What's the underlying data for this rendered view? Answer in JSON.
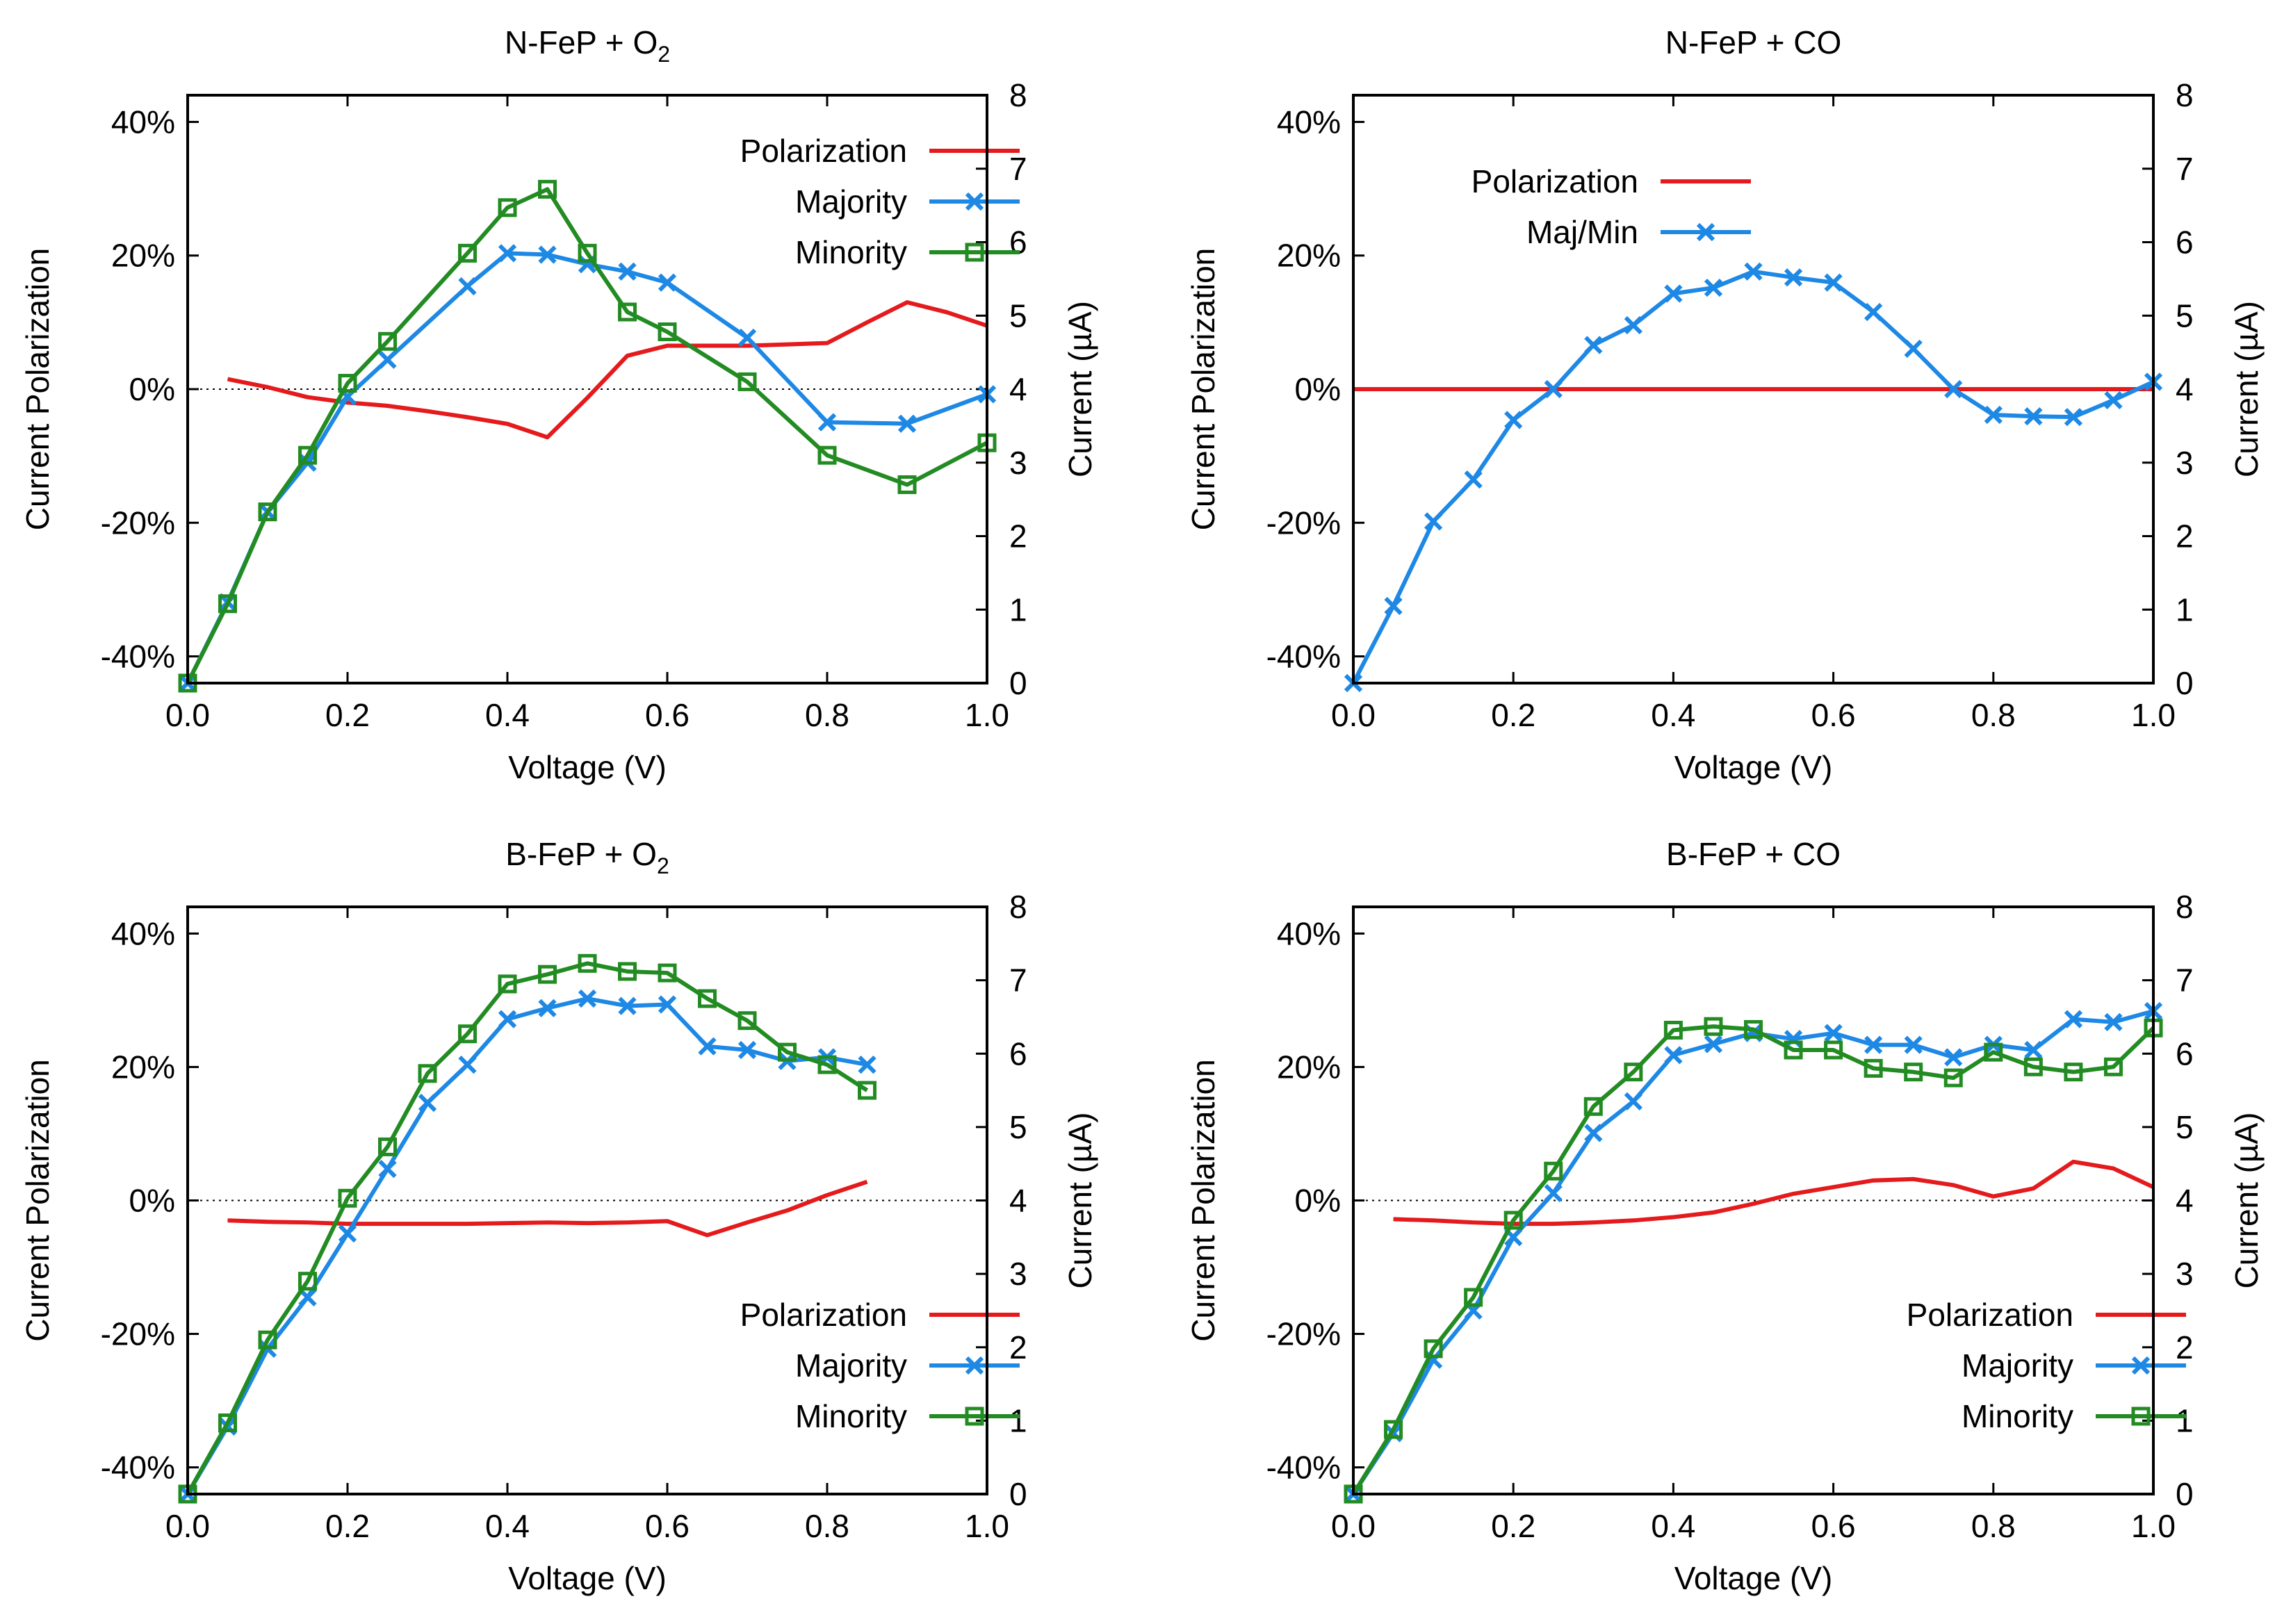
{
  "figure": {
    "description_free": true
  },
  "colors": {
    "polarization": "#e41a1c",
    "majority": "#1e88e5",
    "minority": "#228b22"
  },
  "chart_data": [
    {
      "type": "line",
      "title": "N-FeP + O",
      "title_subscript": "2",
      "xlabel": "Voltage (V)",
      "ylabel_left": "Current Polarization",
      "ylabel_right": "Current (µA)",
      "xlim": [
        0,
        1.0
      ],
      "ylim_left": [
        -44,
        44
      ],
      "ylim_right": [
        0,
        8
      ],
      "x_ticks": [
        "0.0",
        "0.2",
        "0.4",
        "0.6",
        "0.8",
        "1.0"
      ],
      "y_left_ticks": [
        "-40%",
        "-20%",
        "0%",
        "20%",
        "40%"
      ],
      "y_right_ticks": [
        "0",
        "1",
        "2",
        "3",
        "4",
        "5",
        "6",
        "7",
        "8"
      ],
      "legend_position": "top-right",
      "series": [
        {
          "name": "Polarization",
          "axis": "left",
          "color": "#e41a1c",
          "marker": "none",
          "x": [
            0.05,
            0.1,
            0.15,
            0.2,
            0.25,
            0.3,
            0.35,
            0.4,
            0.45,
            0.5,
            0.55,
            0.6,
            0.65,
            0.7,
            0.75,
            0.8,
            0.85,
            0.9,
            0.95,
            1.0
          ],
          "values": [
            1.5,
            0.3,
            -1.2,
            -2.0,
            -2.5,
            -3.3,
            -4.2,
            -5.2,
            -7.2,
            -1.3,
            5.0,
            6.5,
            6.5,
            6.5,
            6.7,
            6.9,
            10.0,
            13.0,
            11.5,
            9.5
          ]
        },
        {
          "name": "Majority",
          "axis": "right",
          "color": "#1e88e5",
          "marker": "x",
          "x": [
            0.0,
            0.05,
            0.1,
            0.15,
            0.2,
            0.25,
            0.35,
            0.4,
            0.45,
            0.5,
            0.55,
            0.6,
            0.7,
            0.8,
            0.9,
            1.0
          ],
          "values": [
            0.0,
            1.1,
            2.33,
            3.0,
            3.9,
            4.4,
            5.4,
            5.85,
            5.83,
            5.7,
            5.6,
            5.45,
            4.7,
            3.55,
            3.53,
            3.93
          ]
        },
        {
          "name": "Minority",
          "axis": "right",
          "color": "#228b22",
          "marker": "square",
          "x": [
            0.0,
            0.05,
            0.1,
            0.15,
            0.2,
            0.25,
            0.35,
            0.4,
            0.45,
            0.5,
            0.55,
            0.6,
            0.7,
            0.8,
            0.9,
            1.0
          ],
          "values": [
            0.0,
            1.08,
            2.33,
            3.1,
            4.08,
            4.65,
            5.85,
            6.47,
            6.72,
            5.85,
            5.05,
            4.78,
            4.1,
            3.1,
            2.7,
            3.27
          ]
        }
      ]
    },
    {
      "type": "line",
      "title": "N-FeP + CO",
      "title_subscript": "",
      "xlabel": "Voltage (V)",
      "ylabel_left": "Current Polarization",
      "ylabel_right": "Current (µA)",
      "xlim": [
        0,
        1.0
      ],
      "ylim_left": [
        -44,
        44
      ],
      "ylim_right": [
        0,
        8
      ],
      "x_ticks": [
        "0.0",
        "0.2",
        "0.4",
        "0.6",
        "0.8",
        "1.0"
      ],
      "y_left_ticks": [
        "-40%",
        "-20%",
        "0%",
        "20%",
        "40%"
      ],
      "y_right_ticks": [
        "0",
        "1",
        "2",
        "3",
        "4",
        "5",
        "6",
        "7",
        "8"
      ],
      "legend_position": "top-left",
      "series": [
        {
          "name": "Polarization",
          "axis": "left",
          "color": "#e41a1c",
          "marker": "none",
          "x": [
            0.0,
            1.0
          ],
          "values": [
            0.0,
            0.0
          ]
        },
        {
          "name": "Maj/Min",
          "axis": "right",
          "color": "#1e88e5",
          "marker": "x",
          "x": [
            0.0,
            0.05,
            0.1,
            0.15,
            0.2,
            0.25,
            0.3,
            0.35,
            0.4,
            0.45,
            0.5,
            0.55,
            0.6,
            0.65,
            0.7,
            0.75,
            0.8,
            0.85,
            0.9,
            0.95,
            1.0
          ],
          "values": [
            0.0,
            1.05,
            2.2,
            2.77,
            3.58,
            4.0,
            4.6,
            4.87,
            5.3,
            5.38,
            5.6,
            5.52,
            5.45,
            5.05,
            4.55,
            4.0,
            3.65,
            3.63,
            3.62,
            3.85,
            4.1
          ]
        }
      ]
    },
    {
      "type": "line",
      "title": "B-FeP + O",
      "title_subscript": "2",
      "xlabel": "Voltage (V)",
      "ylabel_left": "Current Polarization",
      "ylabel_right": "Current (µA)",
      "xlim": [
        0,
        1.0
      ],
      "ylim_left": [
        -44,
        44
      ],
      "ylim_right": [
        0,
        8
      ],
      "x_ticks": [
        "0.0",
        "0.2",
        "0.4",
        "0.6",
        "0.8",
        "1.0"
      ],
      "y_left_ticks": [
        "-40%",
        "-20%",
        "0%",
        "20%",
        "40%"
      ],
      "y_right_ticks": [
        "0",
        "1",
        "2",
        "3",
        "4",
        "5",
        "6",
        "7",
        "8"
      ],
      "legend_position": "bottom-right",
      "series": [
        {
          "name": "Polarization",
          "axis": "left",
          "color": "#e41a1c",
          "marker": "none",
          "x": [
            0.05,
            0.1,
            0.15,
            0.2,
            0.25,
            0.3,
            0.35,
            0.4,
            0.45,
            0.5,
            0.55,
            0.6,
            0.65,
            0.7,
            0.75,
            0.8,
            0.85
          ],
          "values": [
            -3.0,
            -3.2,
            -3.3,
            -3.5,
            -3.5,
            -3.5,
            -3.5,
            -3.4,
            -3.3,
            -3.4,
            -3.3,
            -3.1,
            -5.2,
            -3.3,
            -1.5,
            0.8,
            2.8
          ]
        },
        {
          "name": "Majority",
          "axis": "right",
          "color": "#1e88e5",
          "marker": "x",
          "x": [
            0.0,
            0.05,
            0.1,
            0.15,
            0.2,
            0.25,
            0.3,
            0.35,
            0.4,
            0.45,
            0.5,
            0.55,
            0.6,
            0.65,
            0.7,
            0.75,
            0.8,
            0.85
          ],
          "values": [
            0.0,
            0.92,
            1.98,
            2.68,
            3.55,
            4.43,
            5.33,
            5.85,
            6.47,
            6.62,
            6.75,
            6.65,
            6.67,
            6.1,
            6.05,
            5.9,
            5.95,
            5.85
          ]
        },
        {
          "name": "Minority",
          "axis": "right",
          "color": "#228b22",
          "marker": "square",
          "x": [
            0.0,
            0.05,
            0.1,
            0.15,
            0.2,
            0.25,
            0.3,
            0.35,
            0.4,
            0.45,
            0.5,
            0.55,
            0.6,
            0.65,
            0.7,
            0.75,
            0.8,
            0.85
          ],
          "values": [
            0.0,
            0.97,
            2.1,
            2.9,
            4.03,
            4.73,
            5.73,
            6.27,
            6.95,
            7.08,
            7.23,
            7.12,
            7.1,
            6.75,
            6.45,
            6.02,
            5.85,
            5.5
          ]
        }
      ]
    },
    {
      "type": "line",
      "title": "B-FeP + CO",
      "title_subscript": "",
      "xlabel": "Voltage (V)",
      "ylabel_left": "Current Polarization",
      "ylabel_right": "Current (µA)",
      "xlim": [
        0,
        1.0
      ],
      "ylim_left": [
        -44,
        44
      ],
      "ylim_right": [
        0,
        8
      ],
      "x_ticks": [
        "0.0",
        "0.2",
        "0.4",
        "0.6",
        "0.8",
        "1.0"
      ],
      "y_left_ticks": [
        "-40%",
        "-20%",
        "0%",
        "20%",
        "40%"
      ],
      "y_right_ticks": [
        "0",
        "1",
        "2",
        "3",
        "4",
        "5",
        "6",
        "7",
        "8"
      ],
      "legend_position": "bottom-right",
      "series": [
        {
          "name": "Polarization",
          "axis": "left",
          "color": "#e41a1c",
          "marker": "none",
          "x": [
            0.05,
            0.1,
            0.15,
            0.2,
            0.25,
            0.3,
            0.35,
            0.4,
            0.45,
            0.5,
            0.55,
            0.6,
            0.65,
            0.7,
            0.75,
            0.8,
            0.85,
            0.9,
            0.95,
            1.0
          ],
          "values": [
            -2.8,
            -3.0,
            -3.3,
            -3.5,
            -3.5,
            -3.3,
            -3.0,
            -2.5,
            -1.8,
            -0.5,
            1.0,
            2.0,
            3.0,
            3.2,
            2.3,
            0.6,
            1.8,
            5.8,
            4.8,
            2.0
          ]
        },
        {
          "name": "Majority",
          "axis": "right",
          "color": "#1e88e5",
          "marker": "x",
          "x": [
            0.0,
            0.05,
            0.1,
            0.15,
            0.2,
            0.25,
            0.3,
            0.35,
            0.4,
            0.45,
            0.5,
            0.55,
            0.6,
            0.65,
            0.7,
            0.75,
            0.8,
            0.85,
            0.9,
            0.95,
            1.0
          ],
          "values": [
            0.0,
            0.83,
            1.83,
            2.5,
            3.5,
            4.1,
            4.92,
            5.35,
            5.98,
            6.13,
            6.28,
            6.2,
            6.28,
            6.12,
            6.12,
            5.95,
            6.12,
            6.05,
            6.47,
            6.43,
            6.58
          ]
        },
        {
          "name": "Minority",
          "axis": "right",
          "color": "#228b22",
          "marker": "square",
          "x": [
            0.0,
            0.05,
            0.1,
            0.15,
            0.2,
            0.25,
            0.3,
            0.35,
            0.4,
            0.45,
            0.5,
            0.55,
            0.6,
            0.65,
            0.7,
            0.75,
            0.8,
            0.85,
            0.9,
            0.95,
            1.0
          ],
          "values": [
            0.0,
            0.88,
            1.98,
            2.68,
            3.73,
            4.4,
            5.28,
            5.75,
            6.32,
            6.37,
            6.33,
            6.05,
            6.05,
            5.8,
            5.75,
            5.67,
            6.02,
            5.82,
            5.75,
            5.82,
            6.35
          ]
        }
      ]
    }
  ]
}
